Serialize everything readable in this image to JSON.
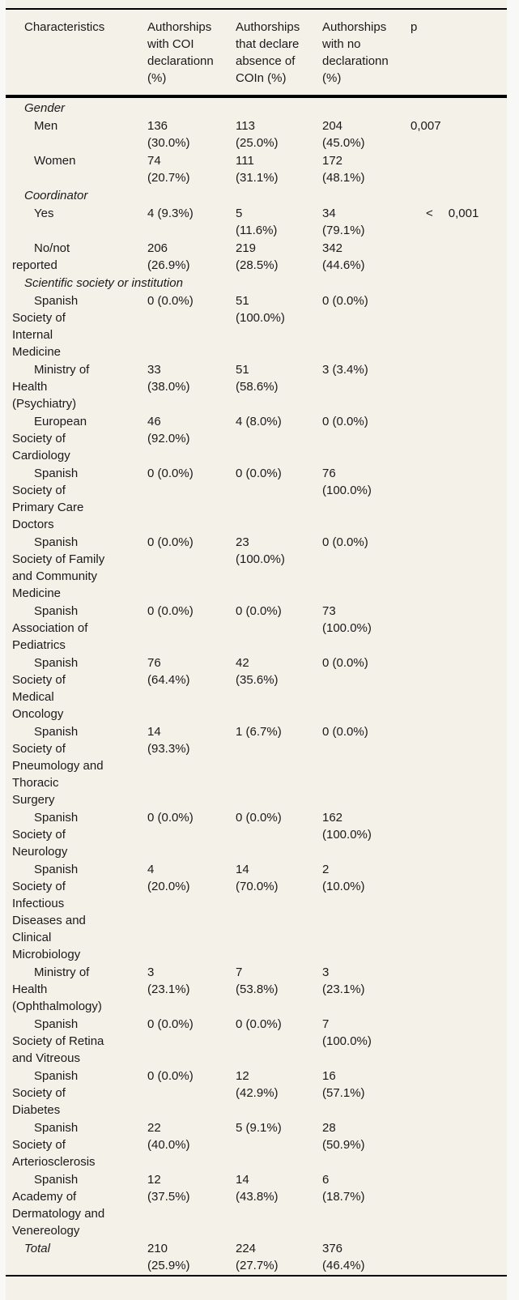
{
  "colors": {
    "table_background": "#f4f1e9",
    "page_margin": "#f8f8f6",
    "rule": "#000000",
    "text": "#1a1a1a"
  },
  "table": {
    "columns": [
      "Characteristics",
      "Authorships\nwith COI\ndeclarationn\n(%)",
      "Authorships\nthat declare\nabsence of\nCOIn (%)",
      "Authorships\nwith no\ndeclarationn\n(%)",
      "p"
    ],
    "rows": [
      {
        "type": "section",
        "label": "Gender",
        "c1": "",
        "c2": "",
        "c3": "",
        "p": ""
      },
      {
        "type": "data",
        "label": "Men",
        "c1": "136\n(30.0%)",
        "c2": "113\n(25.0%)",
        "c3": "204\n(45.0%)",
        "p": "0,007"
      },
      {
        "type": "data",
        "label": "Women",
        "c1": "74\n(20.7%)",
        "c2": "111\n(31.1%)",
        "c3": "172\n(48.1%)",
        "p": ""
      },
      {
        "type": "section",
        "label": "Coordinator",
        "c1": "",
        "c2": "",
        "c3": "",
        "p": ""
      },
      {
        "type": "data",
        "label": "Yes",
        "c1": "4 (9.3%)",
        "c2": "5\n(11.6%)",
        "c3": "34\n(79.1%)",
        "p": "< 0,001"
      },
      {
        "type": "data",
        "label": "No/not\nreported",
        "c1": "206\n(26.9%)",
        "c2": "219\n(28.5%)",
        "c3": "342\n(44.6%)",
        "p": ""
      },
      {
        "type": "section",
        "label": "Scientific society or institution",
        "c1": "",
        "c2": "",
        "c3": "",
        "p": ""
      },
      {
        "type": "data",
        "label": "Spanish\nSociety of\nInternal\nMedicine",
        "c1": "0 (0.0%)",
        "c2": "51\n(100.0%)",
        "c3": "0 (0.0%)",
        "p": ""
      },
      {
        "type": "data",
        "label": "Ministry of\nHealth\n(Psychiatry)",
        "c1": "33\n(38.0%)",
        "c2": "51\n(58.6%)",
        "c3": "3 (3.4%)",
        "p": ""
      },
      {
        "type": "data",
        "label": "European\nSociety of\nCardiology",
        "c1": "46\n(92.0%)",
        "c2": "4 (8.0%)",
        "c3": "0 (0.0%)",
        "p": ""
      },
      {
        "type": "data",
        "label": "Spanish\nSociety of\nPrimary Care\nDoctors",
        "c1": "0 (0.0%)",
        "c2": "0 (0.0%)",
        "c3": "76\n(100.0%)",
        "p": ""
      },
      {
        "type": "data",
        "label": "Spanish\nSociety of Family\nand Community\nMedicine",
        "c1": "0 (0.0%)",
        "c2": "23\n(100.0%)",
        "c3": "0 (0.0%)",
        "p": ""
      },
      {
        "type": "data",
        "label": "Spanish\nAssociation of\nPediatrics",
        "c1": "0 (0.0%)",
        "c2": "0 (0.0%)",
        "c3": "73\n(100.0%)",
        "p": ""
      },
      {
        "type": "data",
        "label": "Spanish\nSociety of\nMedical\nOncology",
        "c1": "76\n(64.4%)",
        "c2": "42\n(35.6%)",
        "c3": "0 (0.0%)",
        "p": ""
      },
      {
        "type": "data",
        "label": "Spanish\nSociety of\nPneumology and\nThoracic\nSurgery",
        "c1": "14\n(93.3%)",
        "c2": "1 (6.7%)",
        "c3": "0 (0.0%)",
        "p": ""
      },
      {
        "type": "data",
        "label": "Spanish\nSociety of\nNeurology",
        "c1": "0 (0.0%)",
        "c2": "0 (0.0%)",
        "c3": "162\n(100.0%)",
        "p": ""
      },
      {
        "type": "data",
        "label": "Spanish\nSociety of\nInfectious\nDiseases and\nClinical\nMicrobiology",
        "c1": "4\n(20.0%)",
        "c2": "14\n(70.0%)",
        "c3": "2\n(10.0%)",
        "p": ""
      },
      {
        "type": "data",
        "label": "Ministry of\nHealth\n(Ophthalmology)",
        "c1": "3\n(23.1%)",
        "c2": "7\n(53.8%)",
        "c3": "3\n(23.1%)",
        "p": ""
      },
      {
        "type": "data",
        "label": "Spanish\nSociety of Retina\nand Vitreous",
        "c1": "0 (0.0%)",
        "c2": "0 (0.0%)",
        "c3": "7\n(100.0%)",
        "p": ""
      },
      {
        "type": "data",
        "label": "Spanish\nSociety of\nDiabetes",
        "c1": "0 (0.0%)",
        "c2": "12\n(42.9%)",
        "c3": "16\n(57.1%)",
        "p": ""
      },
      {
        "type": "data",
        "label": "Spanish\nSociety of\nArteriosclerosis",
        "c1": "22\n(40.0%)",
        "c2": "5 (9.1%)",
        "c3": "28\n(50.9%)",
        "p": ""
      },
      {
        "type": "data",
        "label": "Spanish\nAcademy of\nDermatology and\nVenereology",
        "c1": "12\n(37.5%)",
        "c2": "14\n(43.8%)",
        "c3": "6\n(18.7%)",
        "p": ""
      },
      {
        "type": "total",
        "label": "Total",
        "c1": "210\n(25.9%)",
        "c2": "224\n(27.7%)",
        "c3": "376\n(46.4%)",
        "p": ""
      }
    ]
  }
}
